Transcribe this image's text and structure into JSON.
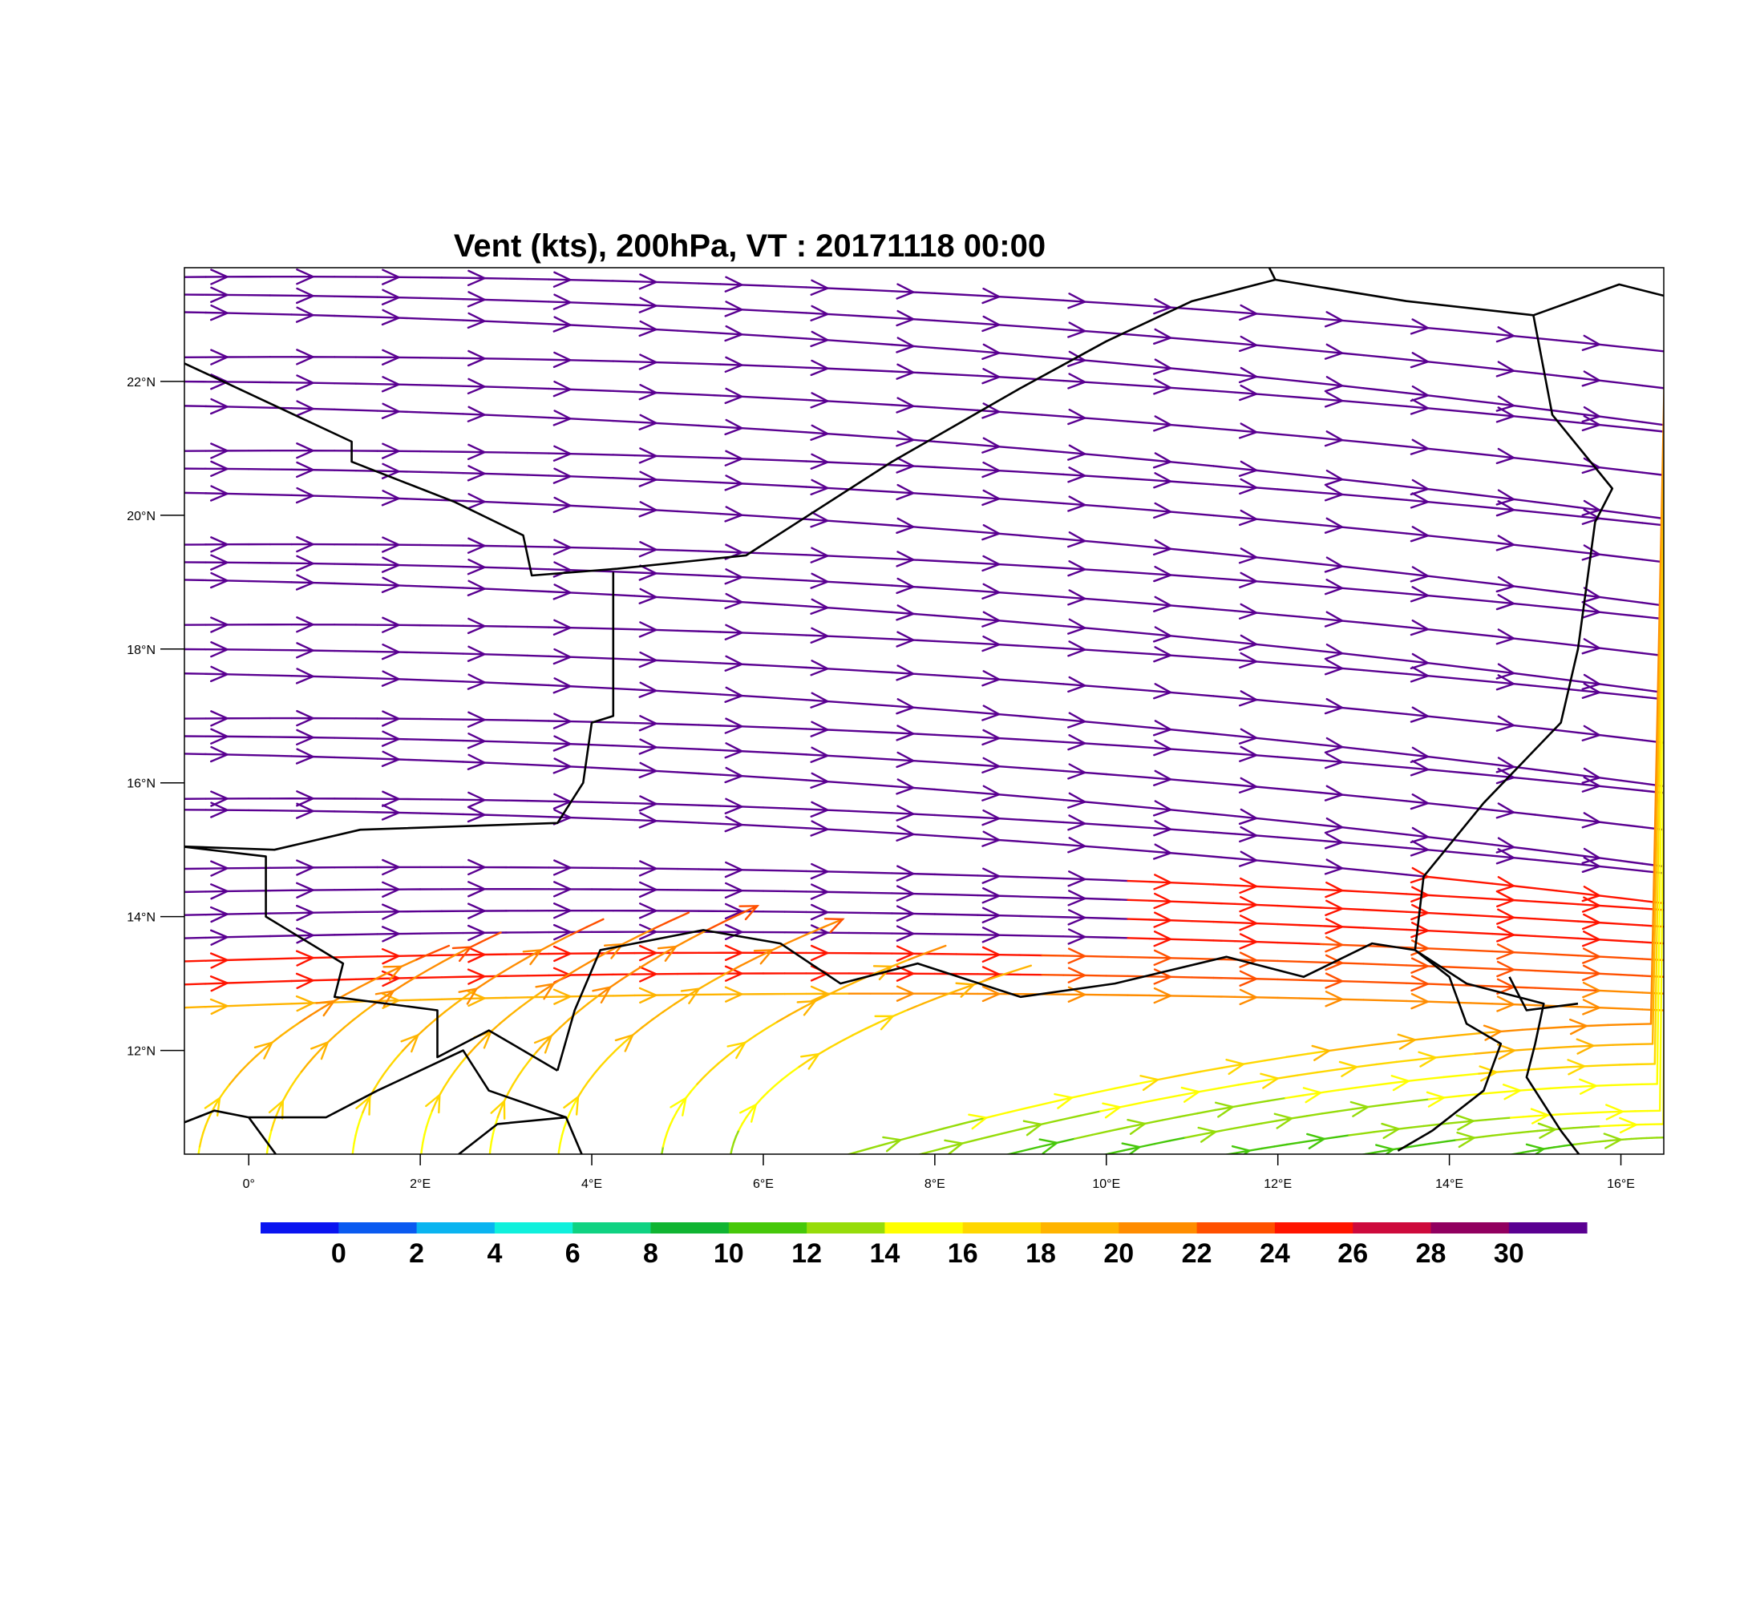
{
  "title": "Vent (kts), 200hPa, VT : 20171118  00:00",
  "map": {
    "lon_range": [
      -0.75,
      16.5
    ],
    "lat_range": [
      10.45,
      23.7
    ],
    "lon_ticks": [
      {
        "value": 0,
        "label": "0°"
      },
      {
        "value": 2,
        "label": "2°E"
      },
      {
        "value": 4,
        "label": "4°E"
      },
      {
        "value": 6,
        "label": "6°E"
      },
      {
        "value": 8,
        "label": "8°E"
      },
      {
        "value": 10,
        "label": "10°E"
      },
      {
        "value": 12,
        "label": "12°E"
      },
      {
        "value": 14,
        "label": "14°E"
      },
      {
        "value": 16,
        "label": "16°E"
      }
    ],
    "lat_ticks": [
      {
        "value": 12,
        "label": "12°N"
      },
      {
        "value": 14,
        "label": "14°N"
      },
      {
        "value": 16,
        "label": "16°N"
      },
      {
        "value": 18,
        "label": "18°N"
      },
      {
        "value": 20,
        "label": "20°N"
      },
      {
        "value": 22,
        "label": "22°N"
      }
    ],
    "border_color": "#000000"
  },
  "colorbar": {
    "colors": [
      "#0a14f0",
      "#0a5af0",
      "#0ab4f0",
      "#10f0dc",
      "#10d282",
      "#10b432",
      "#46c80a",
      "#96dc0a",
      "#ffff00",
      "#ffd700",
      "#ffb400",
      "#ff8c00",
      "#ff5000",
      "#ff1400",
      "#cd0a3c",
      "#91005f",
      "#5a0091"
    ],
    "labels": [
      "0",
      "2",
      "4",
      "6",
      "8",
      "10",
      "12",
      "14",
      "16",
      "18",
      "20",
      "22",
      "24",
      "26",
      "28",
      "30"
    ]
  },
  "chart_data": {
    "type": "streamline",
    "variable": "wind speed (kts) at 200hPa",
    "regions": [
      {
        "lon_range": [
          -0.75,
          16.5
        ],
        "lat_range": [
          14.5,
          23.7
        ],
        "speed_kts": 31,
        "direction": "west-to-east"
      },
      {
        "lon_range": [
          2,
          16.5
        ],
        "lat_range": [
          13.2,
          14.5
        ],
        "speed_kts": 26,
        "direction": "west-to-east"
      },
      {
        "lon_range": [
          0,
          16.5
        ],
        "lat_range": [
          12.5,
          13.2
        ],
        "speed_kts": 22,
        "direction": "west-to-east"
      },
      {
        "lon_range": [
          0,
          6
        ],
        "lat_range": [
          10.45,
          12.5
        ],
        "speed_kts": 17,
        "direction": "south-to-north"
      },
      {
        "lon_range": [
          6.5,
          14
        ],
        "lat_range": [
          10.45,
          12.5
        ],
        "speed_kts": 12,
        "direction": "southwest-to-northeast"
      }
    ]
  }
}
